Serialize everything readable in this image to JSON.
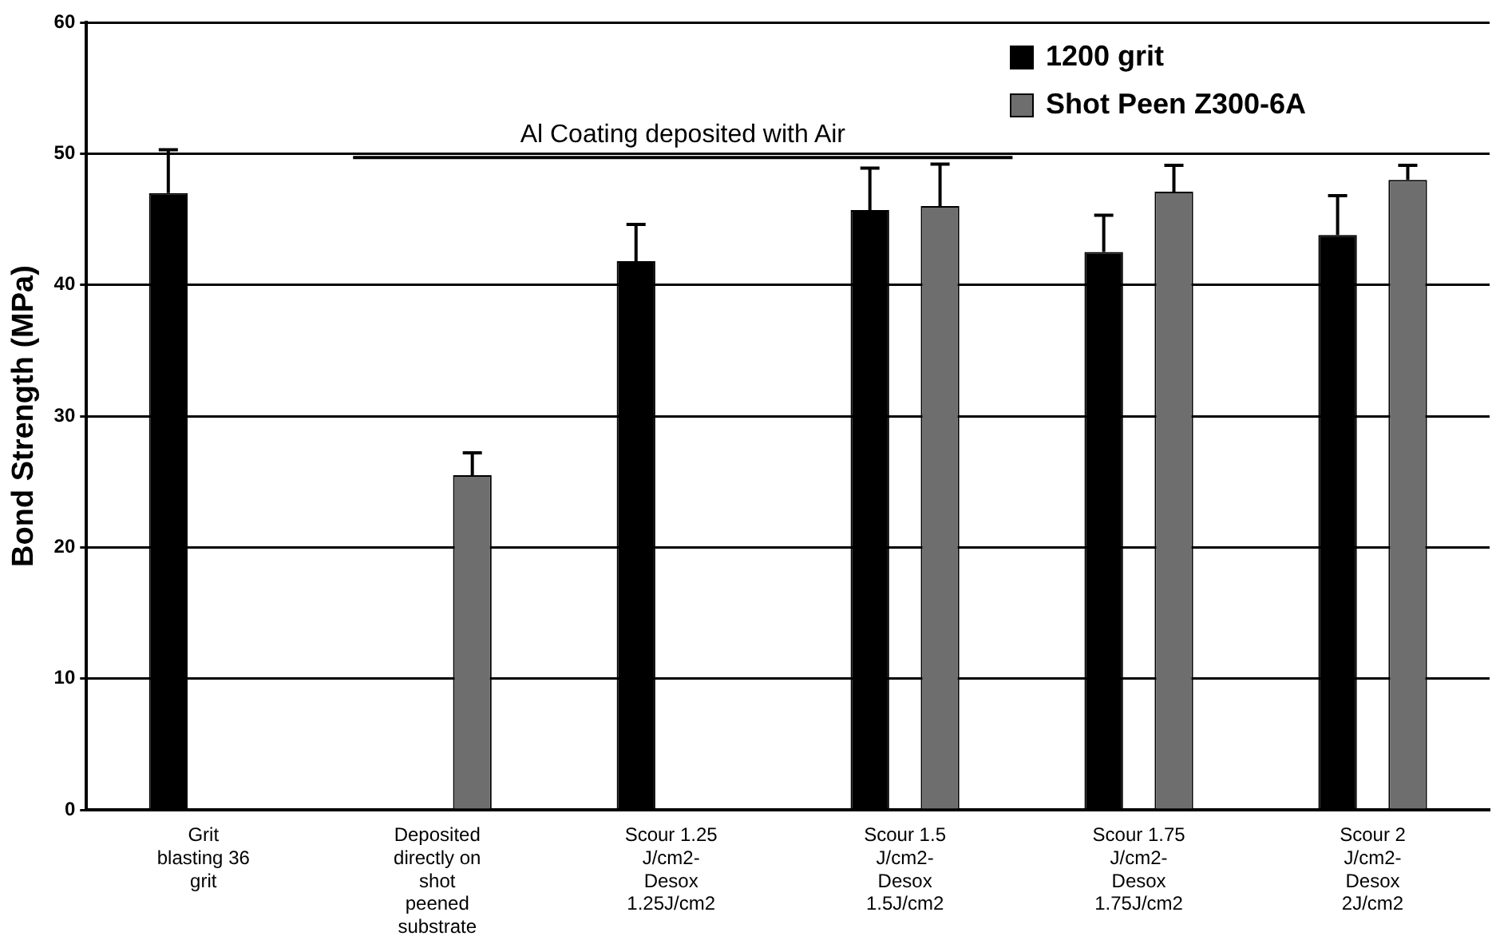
{
  "chart_data": {
    "type": "bar",
    "ylabel": "Bond Strength (MPa)",
    "categories": [
      "Grit\nblasting 36\ngrit",
      "Deposited\ndirectly on\nshot\npeened\nsubstrate",
      "Scour 1.25\nJ/cm2-\nDesox\n1.25J/cm2",
      "Scour 1.5\nJ/cm2-\nDesox\n1.5J/cm2",
      "Scour 1.75\nJ/cm2-\nDesox\n1.75J/cm2",
      "Scour 2\nJ/cm2-\nDesox\n2J/cm2"
    ],
    "series": [
      {
        "name": "1200 grit",
        "color": "#000000",
        "values": [
          47,
          null,
          41.8,
          45.7,
          42.5,
          43.8
        ],
        "errors": [
          [
            47,
            50.3
          ],
          null,
          [
            41.8,
            44.6
          ],
          [
            45.7,
            48.9
          ],
          [
            42.5,
            45.3
          ],
          [
            43.8,
            46.8
          ]
        ]
      },
      {
        "name": "Shot Peen Z300-6A",
        "color": "#6e6e6e",
        "values": [
          null,
          25.5,
          null,
          46,
          47.1,
          48
        ],
        "errors": [
          null,
          [
            25.5,
            27.2
          ],
          null,
          [
            46,
            49.2
          ],
          [
            47.1,
            49.1
          ],
          [
            48,
            49.1
          ]
        ]
      }
    ],
    "ylim": [
      0,
      60
    ],
    "yticks": [
      0,
      10,
      20,
      30,
      40,
      50,
      60
    ],
    "grid": "y",
    "legend": "top right",
    "ref_lines": [
      {
        "axis": "y",
        "value": 49.7,
        "label": "Al Coating deposited with Air",
        "color": "#000000"
      }
    ]
  }
}
